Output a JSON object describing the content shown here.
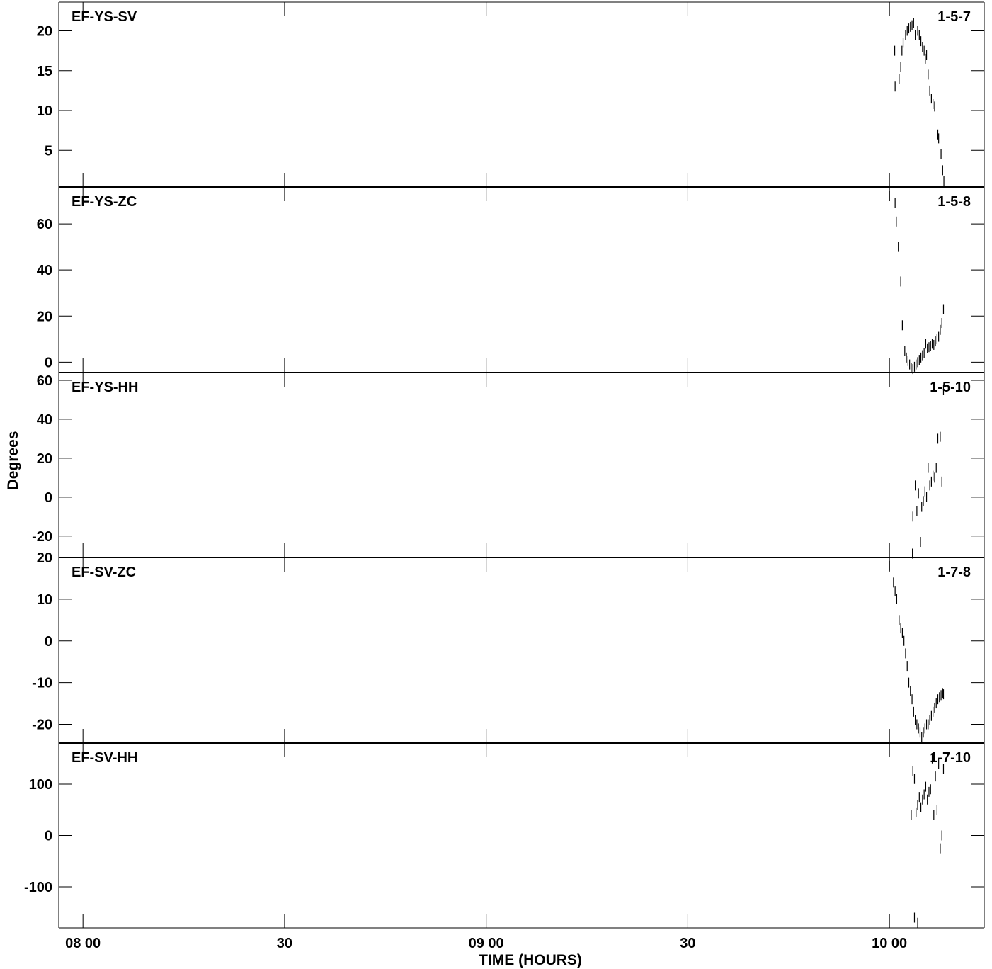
{
  "chart_data": {
    "type": "scatter",
    "ylabel": "Degrees",
    "xlabel": "TIME (HOURS)",
    "x_ticks": [
      {
        "hours": 8.0,
        "label": "08 00"
      },
      {
        "hours": 8.5,
        "label": "30"
      },
      {
        "hours": 9.0,
        "label": "09 00"
      },
      {
        "hours": 9.5,
        "label": "30"
      },
      {
        "hours": 10.0,
        "label": "10 00"
      }
    ],
    "xlim": [
      7.94,
      10.235
    ],
    "panels": [
      {
        "name": "EF-YS-SV",
        "id": "1-5-7",
        "ylim": [
          0.4,
          23.6
        ],
        "yticks": [
          5,
          10,
          15,
          20
        ],
        "points": [
          [
            10.013,
            17.5
          ],
          [
            10.014,
            13.0
          ],
          [
            10.024,
            14.0
          ],
          [
            10.028,
            15.5
          ],
          [
            10.031,
            17.5
          ],
          [
            10.034,
            18.5
          ],
          [
            10.04,
            19.5
          ],
          [
            10.044,
            20.0
          ],
          [
            10.048,
            20.3
          ],
          [
            10.052,
            20.5
          ],
          [
            10.056,
            20.7
          ],
          [
            10.06,
            21.0
          ],
          [
            10.064,
            19.5
          ],
          [
            10.07,
            20.0
          ],
          [
            10.074,
            19.5
          ],
          [
            10.078,
            18.7
          ],
          [
            10.082,
            18.0
          ],
          [
            10.086,
            17.5
          ],
          [
            10.089,
            16.5
          ],
          [
            10.092,
            17.0
          ],
          [
            10.096,
            14.5
          ],
          [
            10.1,
            12.5
          ],
          [
            10.104,
            11.5
          ],
          [
            10.108,
            10.8
          ],
          [
            10.112,
            10.5
          ],
          [
            10.12,
            7.0
          ],
          [
            10.122,
            6.5
          ],
          [
            10.128,
            4.5
          ],
          [
            10.132,
            2.5
          ],
          [
            10.135,
            1.2
          ]
        ]
      },
      {
        "name": "EF-YS-ZC",
        "id": "1-5-8",
        "ylim": [
          -4.5,
          76
        ],
        "yticks": [
          0,
          20,
          40,
          60
        ],
        "points": [
          [
            10.0,
            72.0
          ],
          [
            10.014,
            69.0
          ],
          [
            10.017,
            61.0
          ],
          [
            10.022,
            50.0
          ],
          [
            10.028,
            35.0
          ],
          [
            10.032,
            16.0
          ],
          [
            10.038,
            5.0
          ],
          [
            10.042,
            2.0
          ],
          [
            10.046,
            0.5
          ],
          [
            10.05,
            -1.0
          ],
          [
            10.054,
            -2.5
          ],
          [
            10.058,
            -3.0
          ],
          [
            10.062,
            -2.0
          ],
          [
            10.066,
            -1.0
          ],
          [
            10.07,
            0.0
          ],
          [
            10.074,
            1.0
          ],
          [
            10.078,
            2.0
          ],
          [
            10.082,
            3.0
          ],
          [
            10.086,
            4.0
          ],
          [
            10.09,
            8.0
          ],
          [
            10.094,
            6.0
          ],
          [
            10.098,
            6.5
          ],
          [
            10.102,
            7.0
          ],
          [
            10.106,
            8.0
          ],
          [
            10.11,
            7.5
          ],
          [
            10.114,
            9.0
          ],
          [
            10.118,
            10.0
          ],
          [
            10.122,
            11.0
          ],
          [
            10.126,
            14.0
          ],
          [
            10.13,
            17.0
          ],
          [
            10.134,
            23.0
          ]
        ]
      },
      {
        "name": "EF-YS-HH",
        "id": "1-5-10",
        "ylim": [
          -31,
          64
        ],
        "yticks": [
          -20,
          0,
          20,
          40,
          60
        ],
        "points": [
          [
            10.057,
            -29.0
          ],
          [
            10.058,
            -10.0
          ],
          [
            10.064,
            6.0
          ],
          [
            10.068,
            -7.0
          ],
          [
            10.072,
            2.0
          ],
          [
            10.077,
            -23.0
          ],
          [
            10.08,
            -5.0
          ],
          [
            10.084,
            -2.0
          ],
          [
            10.088,
            3.0
          ],
          [
            10.092,
            0.0
          ],
          [
            10.096,
            15.0
          ],
          [
            10.1,
            6.0
          ],
          [
            10.104,
            8.0
          ],
          [
            10.108,
            11.0
          ],
          [
            10.112,
            10.0
          ],
          [
            10.116,
            15.0
          ],
          [
            10.12,
            30.0
          ],
          [
            10.126,
            31.0
          ],
          [
            10.13,
            8.0
          ],
          [
            10.134,
            55.0
          ]
        ]
      },
      {
        "name": "EF-SV-ZC",
        "id": "1-7-8",
        "ylim": [
          -24.5,
          20
        ],
        "yticks": [
          -20,
          -10,
          0,
          10,
          20
        ],
        "points": [
          [
            10.0,
            18.0
          ],
          [
            10.01,
            14.0
          ],
          [
            10.014,
            12.0
          ],
          [
            10.018,
            10.0
          ],
          [
            10.024,
            5.0
          ],
          [
            10.028,
            3.0
          ],
          [
            10.032,
            2.0
          ],
          [
            10.036,
            0.0
          ],
          [
            10.04,
            -3.0
          ],
          [
            10.044,
            -6.0
          ],
          [
            10.048,
            -10.0
          ],
          [
            10.052,
            -12.0
          ],
          [
            10.056,
            -14.0
          ],
          [
            10.06,
            -17.0
          ],
          [
            10.064,
            -19.0
          ],
          [
            10.068,
            -20.0
          ],
          [
            10.072,
            -21.0
          ],
          [
            10.076,
            -22.0
          ],
          [
            10.08,
            -23.0
          ],
          [
            10.084,
            -22.0
          ],
          [
            10.088,
            -21.0
          ],
          [
            10.092,
            -20.0
          ],
          [
            10.096,
            -20.0
          ],
          [
            10.1,
            -19.0
          ],
          [
            10.104,
            -18.0
          ],
          [
            10.108,
            -17.0
          ],
          [
            10.112,
            -16.0
          ],
          [
            10.116,
            -15.0
          ],
          [
            10.12,
            -14.0
          ],
          [
            10.124,
            -13.5
          ],
          [
            10.128,
            -13.0
          ],
          [
            10.132,
            -12.5
          ],
          [
            10.134,
            -12.8
          ]
        ]
      },
      {
        "name": "EF-SV-HH",
        "id": "1-7-10",
        "ylim": [
          -180,
          180
        ],
        "yticks": [
          -100,
          0,
          100
        ],
        "points": [
          [
            10.054,
            40.0
          ],
          [
            10.058,
            125.0
          ],
          [
            10.062,
            110.0
          ],
          [
            10.066,
            45.0
          ],
          [
            10.07,
            60.0
          ],
          [
            10.074,
            75.0
          ],
          [
            10.078,
            55.0
          ],
          [
            10.082,
            70.0
          ],
          [
            10.086,
            80.0
          ],
          [
            10.09,
            95.0
          ],
          [
            10.094,
            70.0
          ],
          [
            10.098,
            85.0
          ],
          [
            10.102,
            90.0
          ],
          [
            10.106,
            150.0
          ],
          [
            10.11,
            40.0
          ],
          [
            10.114,
            115.0
          ],
          [
            10.118,
            50.0
          ],
          [
            10.122,
            140.0
          ],
          [
            10.126,
            -25.0
          ],
          [
            10.13,
            0.0
          ],
          [
            10.134,
            130.0
          ],
          [
            10.062,
            -160.0
          ],
          [
            10.07,
            -170.0
          ]
        ]
      }
    ]
  }
}
